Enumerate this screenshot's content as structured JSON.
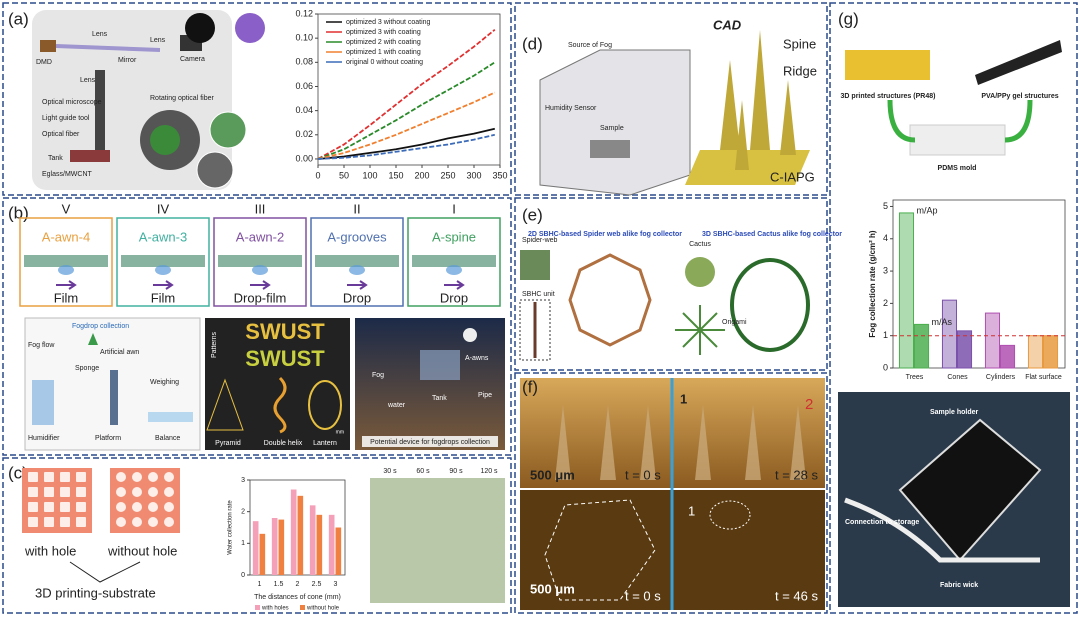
{
  "panels": {
    "a": {
      "label": "(a)",
      "labels": [
        "DMD",
        "Lens",
        "Mirror",
        "Lens",
        "Camera",
        "Lens",
        "Optical microscope",
        "Light guide tool",
        "Optical fiber",
        "Tank",
        "Eglass/MWCNT",
        "Rotating optical fiber"
      ]
    },
    "b": {
      "label": "(b)",
      "roman": [
        "V",
        "IV",
        "III",
        "II",
        "I"
      ],
      "awns": [
        "A-awn-4",
        "A-awn-3",
        "A-awn-2",
        "A-grooves",
        "A-spine"
      ],
      "modes": [
        "Film",
        "Film",
        "Drop-film",
        "Drop",
        "Drop"
      ],
      "setup": [
        "Fogdrop collection",
        "Fog flow",
        "Artificial awn",
        "Sponge",
        "Weighing",
        "Humidifier",
        "Platform",
        "Balance"
      ],
      "patterns": [
        "Patterns",
        "SWUST",
        "SWUST",
        "Pyramid",
        "Double helix",
        "Lantern",
        "mm"
      ],
      "device": [
        "Fog",
        "A-awns",
        "water",
        "Tank",
        "Pipe",
        "Potential device for fogdrops collection"
      ]
    },
    "c": {
      "label": "(c)",
      "texts": [
        "with hole",
        "without hole",
        "3D printing-substrate"
      ],
      "times": [
        "30 s",
        "60 s",
        "90 s",
        "120 s"
      ]
    },
    "d": {
      "label": "(d)",
      "texts": [
        "Source of Fog",
        "Humidity Sensor",
        "Sample",
        "CAD",
        "Spine",
        "Ridge",
        "C-IAPG"
      ]
    },
    "e": {
      "label": "(e)",
      "texts": [
        "Spider-web",
        "2D SBHC-based Spider web alike fog collector",
        "SBHC unit",
        "Cactus",
        "3D SBHC-based Cactus alike fog collector",
        "Origami"
      ]
    },
    "f": {
      "label": "(f)",
      "texts": [
        "500 μm",
        "t = 0 s",
        "t = 28 s",
        "1",
        "2",
        "500 μm",
        "t = 0 s",
        "t = 46 s",
        "1"
      ]
    },
    "g": {
      "label": "(g)",
      "texts": [
        "3D printed structures (PR48)",
        "PVA/PPy gel structures",
        "PDMS mold",
        "Sample holder",
        "Connection to storage",
        "Fabric wick"
      ]
    }
  },
  "chart_data": [
    {
      "type": "line",
      "x": [
        0,
        50,
        100,
        150,
        200,
        250,
        300,
        340
      ],
      "series": [
        {
          "name": "optimized 3 without coating",
          "color": "#111111",
          "values": [
            0,
            0.002,
            0.005,
            0.008,
            0.012,
            0.017,
            0.021,
            0.025
          ]
        },
        {
          "name": "optimized 3 with coating",
          "color": "#e03030",
          "values": [
            0,
            0.012,
            0.028,
            0.045,
            0.062,
            0.077,
            0.093,
            0.107
          ]
        },
        {
          "name": "optimized 2 with coating",
          "color": "#2a8a2a",
          "values": [
            0,
            0.008,
            0.02,
            0.032,
            0.045,
            0.057,
            0.069,
            0.08
          ]
        },
        {
          "name": "optimized 1 with coating",
          "color": "#f08030",
          "values": [
            0,
            0.005,
            0.012,
            0.02,
            0.029,
            0.038,
            0.047,
            0.055
          ]
        },
        {
          "name": "original 0 without coating",
          "color": "#3a6ab8",
          "values": [
            0,
            0.001,
            0.003,
            0.006,
            0.009,
            0.012,
            0.016,
            0.02
          ]
        }
      ],
      "xlim": [
        0,
        350
      ],
      "xticks": [
        0,
        50,
        100,
        150,
        200,
        250,
        300,
        350
      ],
      "ylim": [
        -0.005,
        0.12
      ],
      "yticks": [
        {
          "value": 0,
          "label": "0.00"
        },
        {
          "value": 0.02,
          "label": "0.02"
        },
        {
          "value": 0.04,
          "label": "0.04"
        },
        {
          "value": 0.06,
          "label": "0.06"
        },
        {
          "value": 0.08,
          "label": "0.08"
        },
        {
          "value": 0.1,
          "label": "0.10"
        },
        {
          "value": 0.12,
          "label": "0.12"
        }
      ],
      "legend": "top-left"
    },
    {
      "type": "bar",
      "ylabel": "Water collection rate",
      "xlabel": "The distances of cone (mm)",
      "categories": [
        "1",
        "1.5",
        "2",
        "2.5",
        "3"
      ],
      "series": [
        {
          "name": "with holes",
          "color": "#f4a0b8",
          "values": [
            1.7,
            1.8,
            2.7,
            2.2,
            1.9
          ]
        },
        {
          "name": "without hole",
          "color": "#f08040",
          "values": [
            1.3,
            1.75,
            2.5,
            1.9,
            1.5
          ]
        }
      ],
      "ylim": [
        0,
        3
      ],
      "yticks": [
        0,
        1,
        2,
        3
      ],
      "legend": "bottom"
    },
    {
      "type": "bar",
      "ylabel": "Fog collection rate (g/cm² h)",
      "categories": [
        "Trees",
        "Cones",
        "Cylinders",
        "Flat surface"
      ],
      "colors": [
        "#4caf50",
        "#7b52ab",
        "#b050b0",
        "#e89a40"
      ],
      "series": [
        {
          "name": "m/Ap",
          "values": [
            4.8,
            2.1,
            1.7,
            1.0
          ]
        },
        {
          "name": "m/As",
          "values": [
            1.35,
            1.15,
            0.7,
            1.0
          ]
        }
      ],
      "reference_line": 1,
      "reference_color": "#d03030",
      "ylim": [
        0,
        5.2
      ],
      "yticks": [
        0,
        1,
        2,
        3,
        4,
        5
      ]
    }
  ]
}
